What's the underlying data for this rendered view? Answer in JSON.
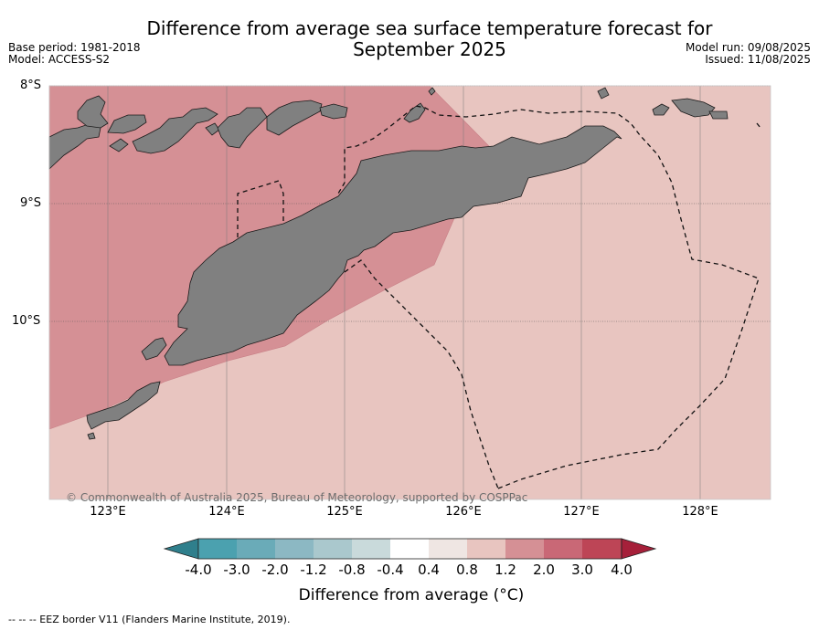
{
  "title": {
    "line1": "Difference from average sea surface temperature forecast for",
    "line2": "September 2025"
  },
  "meta": {
    "base_period": "Base period: 1981-2018",
    "model": "Model: ACCESS-S2",
    "model_run": "Model run: 09/08/2025",
    "issued": "Issued: 11/08/2025"
  },
  "axes": {
    "lat_labels": [
      "8°S",
      "9°S",
      "10°S"
    ],
    "lon_labels": [
      "123°E",
      "124°E",
      "125°E",
      "126°E",
      "127°E",
      "128°E"
    ]
  },
  "copyright": "© Commonwealth of Australia 2025, Bureau of Meteorology, supported by COSPPac",
  "colorbar": {
    "title": "Difference from average (°C)",
    "tick_labels": [
      "-4.0",
      "-3.0",
      "-2.0",
      "-1.2",
      "-0.8",
      "-0.4",
      "0.4",
      "0.8",
      "1.2",
      "2.0",
      "3.0",
      "4.0"
    ],
    "colors": [
      "#2f7f8c",
      "#4ba1af",
      "#6aabb8",
      "#8cb8c3",
      "#aac8cd",
      "#c9dadb",
      "#ffffff",
      "#efe6e3",
      "#e8c5c0",
      "#d59095",
      "#c96876",
      "#bd4556",
      "#a6203a"
    ]
  },
  "legend_note": "--  --  -- EEZ border V11 (Flanders Marine Institute, 2019).",
  "colors": {
    "land": "#808080",
    "anomaly_0_8_1_2": "#e8c5c0",
    "anomaly_1_2_2_0": "#d59095"
  }
}
